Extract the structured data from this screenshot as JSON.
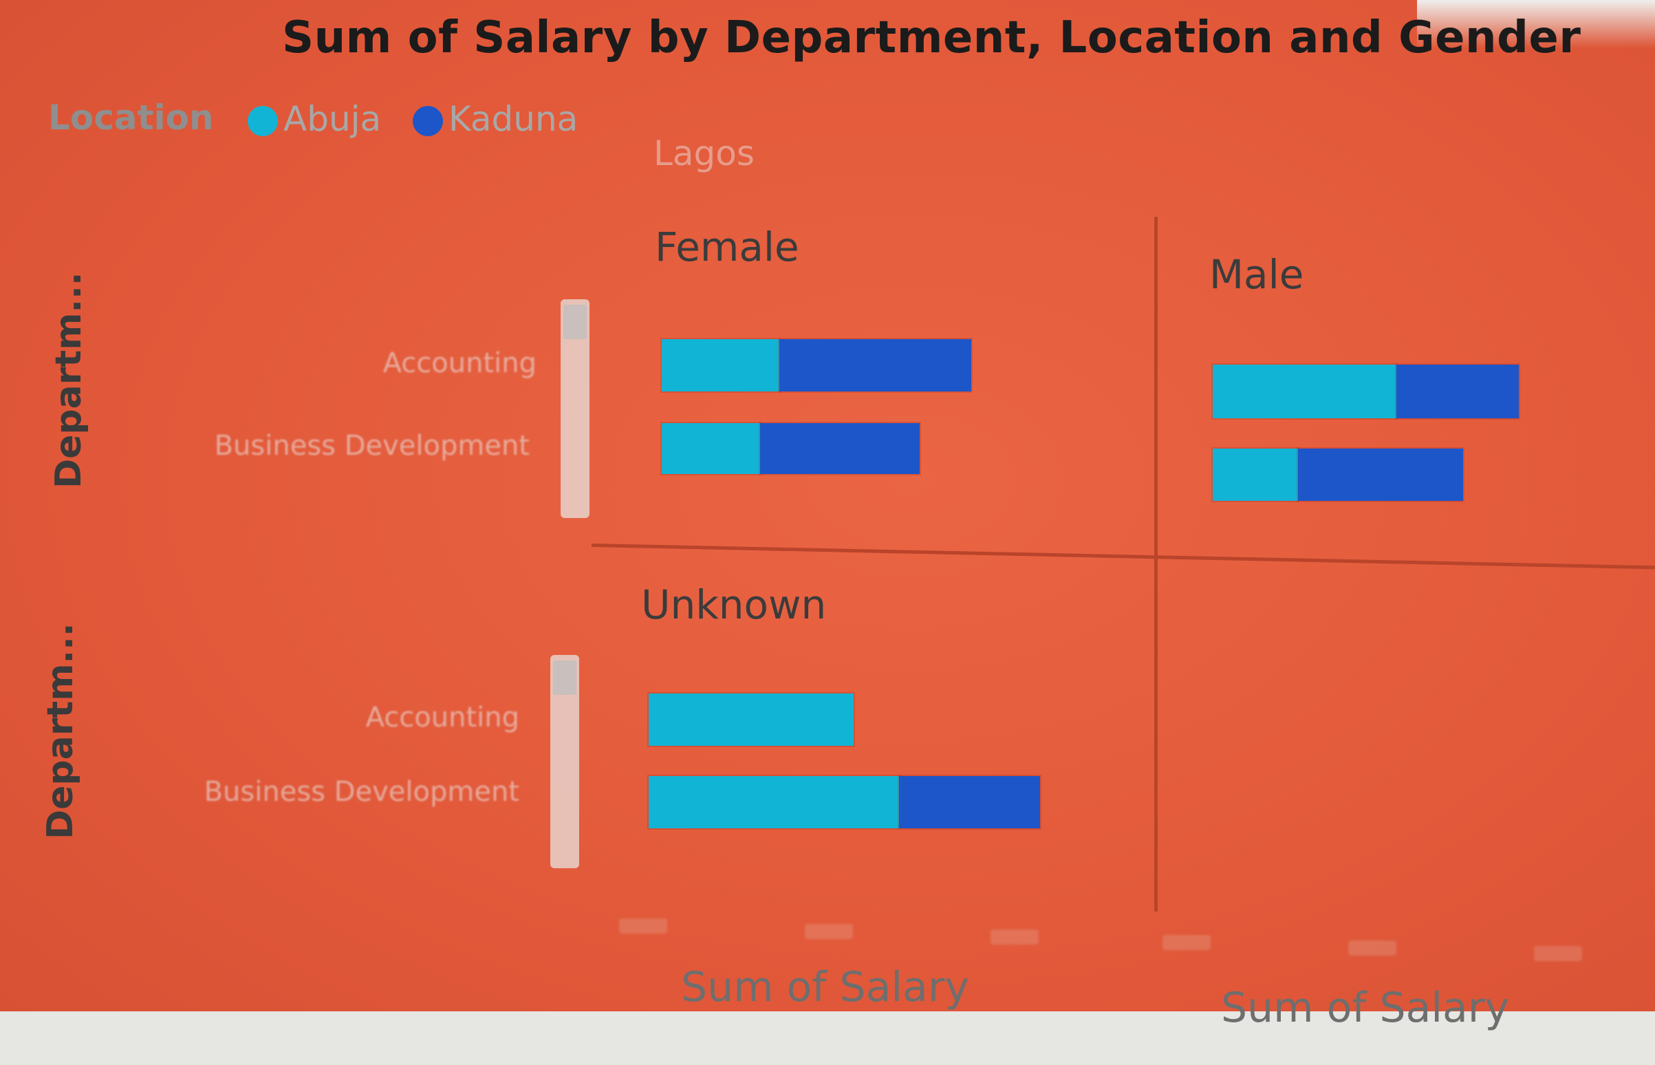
{
  "chart_data": {
    "type": "bar",
    "orientation": "horizontal",
    "stacked": true,
    "title": "Sum of Salary by Department, Location and Gender",
    "legend": {
      "title": "Location",
      "placement": "top-left",
      "entries": [
        {
          "name": "Abuja",
          "color": "#12b4d6"
        },
        {
          "name": "Kaduna",
          "color": "#1c56c9"
        },
        {
          "name": "Lagos",
          "color": "#e8e8e8"
        }
      ]
    },
    "xlabel": "Sum of Salary",
    "ylabel": "Departm...",
    "categories": [
      "Accounting",
      "Business Development"
    ],
    "series_names": [
      "Abuja",
      "Kaduna",
      "Lagos"
    ],
    "panels": [
      {
        "name": "Female",
        "values": {
          "Accounting": [
            110,
            180,
            0
          ],
          "Business Development": [
            92,
            150,
            0
          ]
        }
      },
      {
        "name": "Male",
        "values": {
          "Accounting": [
            172,
            115,
            0
          ],
          "Business Development": [
            80,
            155,
            0
          ]
        }
      },
      {
        "name": "Unknown",
        "values": {
          "Accounting": [
            192,
            0,
            0
          ],
          "Business Development": [
            235,
            132,
            0
          ]
        }
      }
    ],
    "xlim": [
      0,
      480
    ],
    "grid": false
  },
  "colors": {
    "background": "#e25a3a",
    "abuja": "#12b4d6",
    "kaduna": "#1c56c9",
    "divider": "#b9442a"
  }
}
